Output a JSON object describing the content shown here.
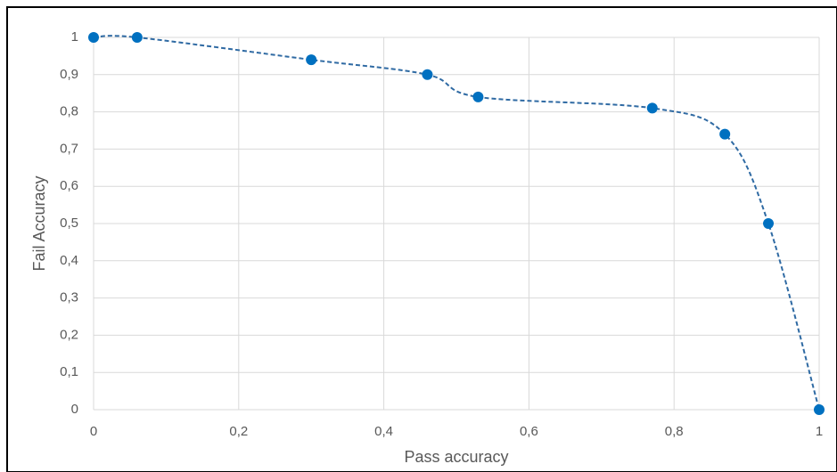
{
  "chart_data": {
    "type": "scatter",
    "x_label": "Pass accuracy",
    "y_label": "Fail Accuracy",
    "series": [
      {
        "color": "#0070c0",
        "x": [
          0,
          0.06,
          0.3,
          0.46,
          0.53,
          0.77,
          0.87,
          0.93,
          1
        ],
        "values": [
          1,
          1,
          0.94,
          0.9,
          0.84,
          0.81,
          0.74,
          0.5,
          0
        ]
      }
    ],
    "line": "dashed",
    "line_color": "#2f6aa3",
    "xlim": [
      0,
      1
    ],
    "xticks": [
      0,
      {
        "value": 0.2,
        "label": "0,2"
      },
      {
        "value": 0.4,
        "label": "0,4"
      },
      {
        "value": 0.6,
        "label": "0,6"
      },
      {
        "value": 0.8,
        "label": "0,8"
      },
      1
    ],
    "ylim": [
      0,
      1
    ],
    "yticks": [
      0,
      {
        "value": 0.1,
        "label": "0,1"
      },
      {
        "value": 0.2,
        "label": "0,2"
      },
      {
        "value": 0.3,
        "label": "0,3"
      },
      {
        "value": 0.4,
        "label": "0,4"
      },
      {
        "value": 0.5,
        "label": "0,5"
      },
      {
        "value": 0.6,
        "label": "0,6"
      },
      {
        "value": 0.7,
        "label": "0,7"
      },
      {
        "value": 0.8,
        "label": "0,8"
      },
      {
        "value": 0.9,
        "label": "0,9"
      },
      1
    ],
    "grid": true
  }
}
